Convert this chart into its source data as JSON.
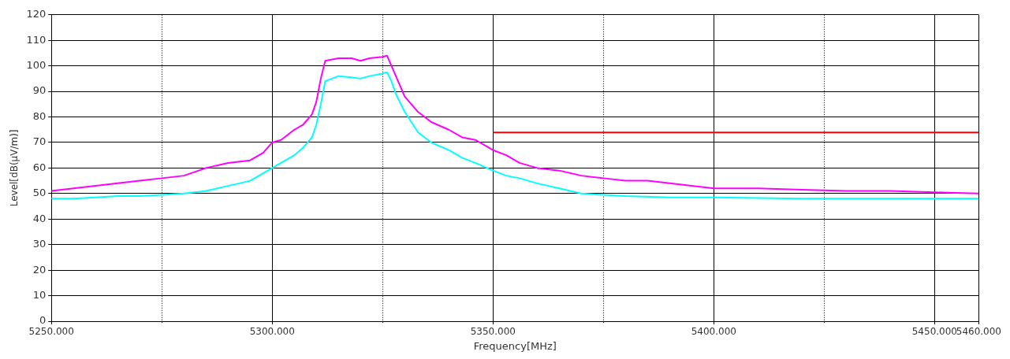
{
  "chart_data": {
    "type": "line",
    "xlabel": "Frequency[MHz]",
    "ylabel": "Level[dB(µV/m)]",
    "xlim": [
      5250,
      5460
    ],
    "ylim": [
      0,
      120
    ],
    "xticks": [
      {
        "value": 5250,
        "label": "5250.000"
      },
      {
        "value": 5275,
        "label": null
      },
      {
        "value": 5300,
        "label": "5300.000"
      },
      {
        "value": 5325,
        "label": null
      },
      {
        "value": 5350,
        "label": "5350.000"
      },
      {
        "value": 5375,
        "label": null
      },
      {
        "value": 5400,
        "label": "5400.000"
      },
      {
        "value": 5425,
        "label": null
      },
      {
        "value": 5450,
        "label": "5450.000"
      },
      {
        "value": 5460,
        "label": "5460.000"
      }
    ],
    "yticks": [
      0,
      10,
      20,
      30,
      40,
      50,
      60,
      70,
      80,
      90,
      100,
      110,
      120
    ],
    "grid": true,
    "legend": false,
    "marker": "none",
    "line_style": "solid",
    "series": [
      {
        "color": "#ff00ff",
        "x": [
          5250,
          5255,
          5260,
          5265,
          5270,
          5275,
          5280,
          5285,
          5290,
          5295,
          5298,
          5300,
          5302,
          5305,
          5307,
          5309,
          5310,
          5311,
          5312,
          5315,
          5318,
          5320,
          5322,
          5325,
          5326,
          5327,
          5328,
          5330,
          5333,
          5336,
          5340,
          5343,
          5346,
          5350,
          5353,
          5356,
          5360,
          5365,
          5370,
          5375,
          5380,
          5385,
          5390,
          5395,
          5400,
          5410,
          5420,
          5430,
          5440,
          5450,
          5460
        ],
        "values": [
          51,
          52,
          53,
          54,
          55,
          56,
          57,
          60,
          62,
          63,
          66,
          70,
          71,
          75,
          77,
          81,
          86,
          95,
          102,
          103,
          103,
          102,
          103,
          103.5,
          104,
          100,
          96,
          88,
          82,
          78,
          75,
          72,
          71,
          67,
          65,
          62,
          60,
          59,
          57,
          56,
          55,
          55,
          54,
          53,
          52,
          52,
          51.5,
          51,
          51,
          50.5,
          50
        ]
      },
      {
        "color": "#00ffff",
        "x": [
          5250,
          5255,
          5260,
          5265,
          5270,
          5275,
          5280,
          5285,
          5290,
          5295,
          5300,
          5302,
          5305,
          5307,
          5309,
          5310,
          5311,
          5312,
          5315,
          5318,
          5320,
          5322,
          5325,
          5326,
          5327,
          5328,
          5330,
          5333,
          5336,
          5340,
          5343,
          5346,
          5350,
          5353,
          5356,
          5360,
          5365,
          5370,
          5375,
          5380,
          5390,
          5400,
          5420,
          5440,
          5460
        ],
        "values": [
          48,
          48,
          48.5,
          49,
          49,
          49.5,
          50,
          51,
          53,
          55,
          60,
          62,
          65,
          68,
          72,
          77,
          85,
          94,
          96,
          95.5,
          95,
          96,
          97,
          97.5,
          94,
          89,
          82,
          74,
          70,
          67,
          64,
          62,
          59,
          57,
          56,
          54,
          52,
          50,
          49.5,
          49,
          48.5,
          48.5,
          48,
          48,
          48
        ]
      },
      {
        "color": "#ff0000",
        "x": [
          5350,
          5460
        ],
        "values": [
          73.9,
          73.9
        ]
      }
    ]
  }
}
